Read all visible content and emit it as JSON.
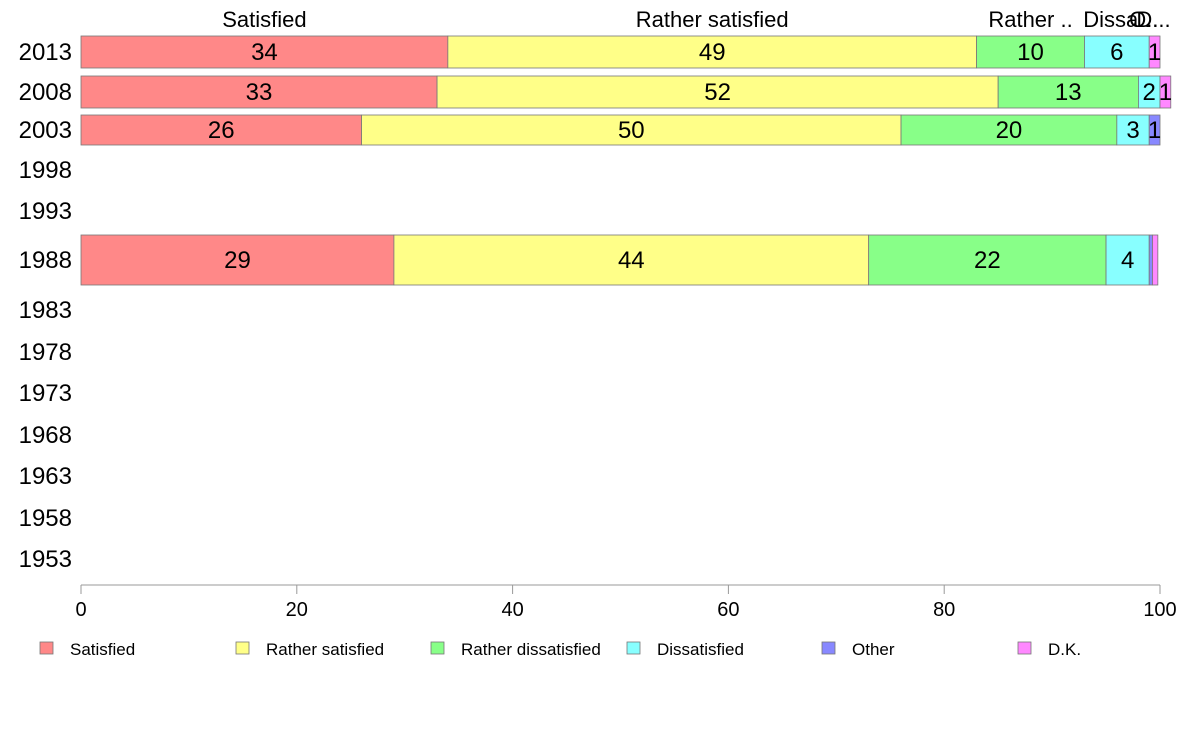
{
  "chart_data": {
    "type": "bar",
    "orientation": "horizontal",
    "stacked": true,
    "categories": [
      "2013",
      "2008",
      "2003",
      "1998",
      "1993",
      "1988",
      "1983",
      "1978",
      "1973",
      "1968",
      "1963",
      "1958",
      "1953"
    ],
    "series": [
      {
        "name": "Satisfied",
        "color": "#ff8888",
        "values": [
          34,
          33,
          26,
          null,
          null,
          29,
          null,
          null,
          null,
          null,
          null,
          null,
          null
        ]
      },
      {
        "name": "Rather satisfied",
        "color": "#ffff88",
        "values": [
          49,
          52,
          50,
          null,
          null,
          44,
          null,
          null,
          null,
          null,
          null,
          null,
          null
        ]
      },
      {
        "name": "Rather dissatisfied",
        "color": "#88ff88",
        "values": [
          10,
          13,
          20,
          null,
          null,
          22,
          null,
          null,
          null,
          null,
          null,
          null,
          null
        ]
      },
      {
        "name": "Dissatisfied",
        "color": "#88ffff",
        "values": [
          6,
          2,
          3,
          null,
          null,
          4,
          null,
          null,
          null,
          null,
          null,
          null,
          null
        ]
      },
      {
        "name": "Other",
        "color": "#8888ff",
        "values": [
          0,
          0,
          1,
          null,
          null,
          0.3,
          null,
          null,
          null,
          null,
          null,
          null,
          null
        ]
      },
      {
        "name": "D.K.",
        "color": "#ff88ff",
        "values": [
          1,
          1,
          0,
          null,
          null,
          0.5,
          null,
          null,
          null,
          null,
          null,
          null,
          null
        ]
      }
    ],
    "top_labels": [
      "Satisfied",
      "Rather satisfied",
      "Rather ..",
      "Dissa..",
      "O..",
      "D..."
    ],
    "x_ticks": [
      "0",
      "20",
      "40",
      "60",
      "80",
      "100"
    ],
    "xlim": [
      0,
      100
    ],
    "grid": false,
    "legend": "bottom"
  }
}
